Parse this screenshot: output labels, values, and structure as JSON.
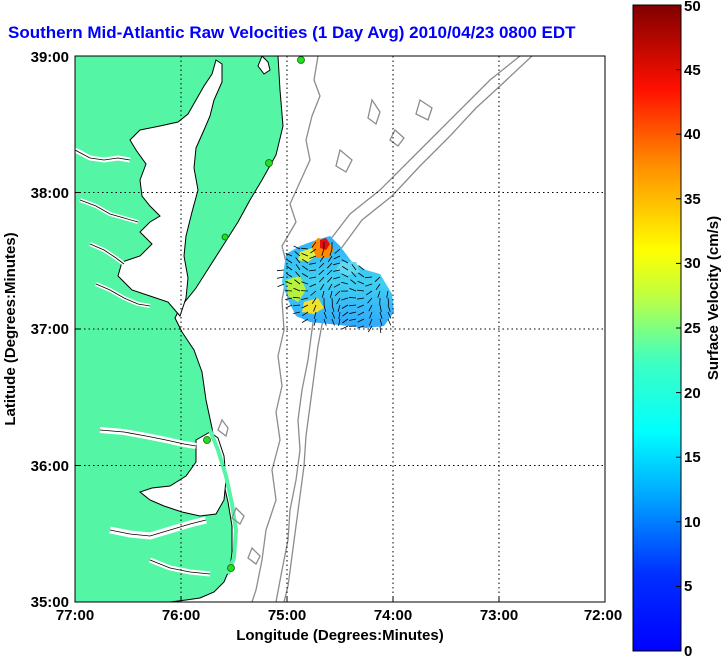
{
  "title": "Southern Mid-Atlantic Raw Velocities (1 Day Avg) 2010/04/23 0800 EDT",
  "map": {
    "xlabel": "Longitude (Degrees:Minutes)",
    "ylabel": "Latitude (Degrees:Minutes)",
    "xticks": [
      "77:00",
      "76:00",
      "75:00",
      "74:00",
      "73:00",
      "72:00"
    ],
    "yticks": [
      "39:00",
      "38:00",
      "37:00",
      "36:00",
      "35:00"
    ],
    "xlim": [
      -77,
      -72
    ],
    "ylim": [
      35,
      39
    ],
    "grid": true,
    "colors": {
      "land": "#55f5a6",
      "coastline": "#000000",
      "bathymetry": "#8c8c8c",
      "grid": "#000000",
      "station": "#22dd22"
    }
  },
  "colorbar": {
    "label": "Surface Velocity (cm/s)",
    "ticks": [
      "0",
      "5",
      "10",
      "15",
      "20",
      "25",
      "30",
      "35",
      "40",
      "45",
      "50"
    ],
    "range": [
      0,
      50
    ],
    "colormap": "jet"
  },
  "icons": {
    "station": "station-dot-icon"
  }
}
